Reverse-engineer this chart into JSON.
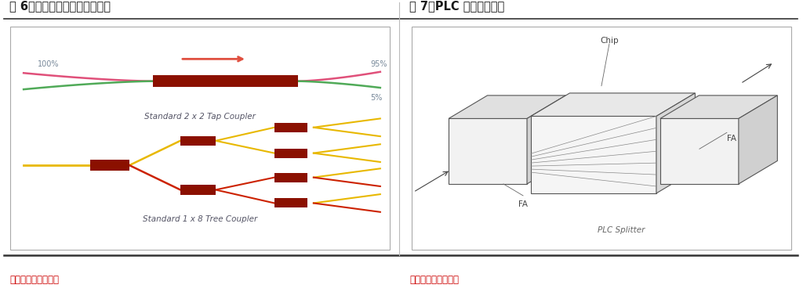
{
  "fig_width": 10.24,
  "fig_height": 3.73,
  "bg_color": "#ffffff",
  "title_left": "图 6：熔融拉锥型光分路器结构",
  "title_right": "图 7：PLC 光分路器结构",
  "source_left": "数据来源：今日光电",
  "source_right": "数据来源：今日光电",
  "title_color": "#1a1a1a",
  "title_fontsize": 10.5,
  "source_color": "#cc0000",
  "source_fontsize": 8.5,
  "label1": "Standard 2 x 2 Tap Coupler",
  "label2": "Standard 1 x 8 Tree Coupler",
  "label_color": "#555566",
  "pct_100": "100%",
  "pct_95": "95%",
  "pct_5": "5%",
  "chip_label": "Chip",
  "fa_label_left": "FA",
  "fa_label_right": "FA",
  "plc_label": "PLC Splitter",
  "coupler_color": "#8B1000",
  "fiber_pink": "#e0507a",
  "fiber_green": "#50aa58",
  "fiber_yellow": "#e8b800",
  "fiber_red": "#cc2200",
  "arrow_color": "#e05040",
  "line_color": "#555555",
  "pct_color": "#778899"
}
